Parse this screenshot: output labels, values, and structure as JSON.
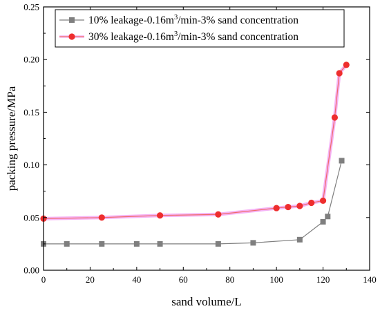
{
  "chart_data": {
    "type": "line",
    "xlabel": "sand volume/L",
    "ylabel": "packing pressure/MPa",
    "xlim": [
      0,
      140
    ],
    "ylim": [
      0.0,
      0.25
    ],
    "xticks": [
      "0",
      "20",
      "40",
      "60",
      "80",
      "100",
      "120",
      "140"
    ],
    "yticks": [
      "0.00",
      "0.05",
      "0.10",
      "0.15",
      "0.20",
      "0.25"
    ],
    "grid": false,
    "legend_position": "top-left",
    "series": [
      {
        "name_parts": [
          "10% leakage-0.16m",
          "3",
          "/min-3% sand concentration"
        ],
        "color": "#7f7f7f",
        "marker": "square",
        "x": [
          0,
          10,
          25,
          40,
          50,
          75,
          90,
          110,
          120,
          122,
          128
        ],
        "y": [
          0.025,
          0.025,
          0.025,
          0.025,
          0.025,
          0.025,
          0.026,
          0.029,
          0.046,
          0.051,
          0.104
        ]
      },
      {
        "name_parts": [
          "30% leakage-0.16m",
          "3",
          "/min-3% sand concentration"
        ],
        "color": "#ee2e2e",
        "line_color": "#f06a6a",
        "glow_color": "#f3a6f3",
        "marker": "circle",
        "x": [
          0,
          25,
          50,
          75,
          100,
          105,
          110,
          115,
          120,
          125,
          127,
          130
        ],
        "y": [
          0.049,
          0.05,
          0.052,
          0.053,
          0.059,
          0.06,
          0.061,
          0.064,
          0.066,
          0.145,
          0.187,
          0.195
        ]
      }
    ]
  }
}
